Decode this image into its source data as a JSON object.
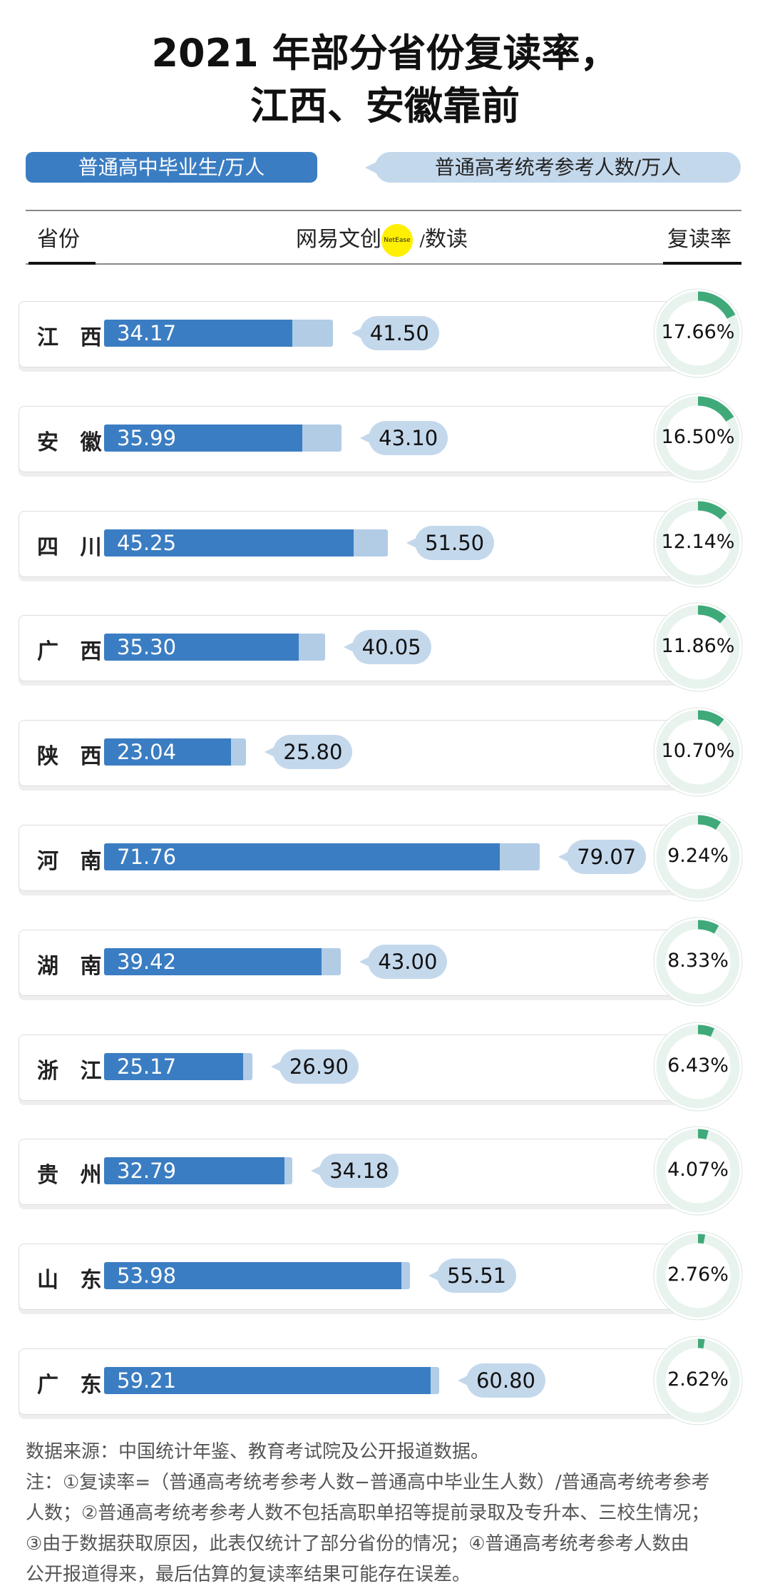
{
  "title": {
    "line1": "2021 年部分省份复读率，",
    "line2": "江西、安徽靠前"
  },
  "legend": {
    "graduates": "普通高中毕业生/万人",
    "examinees": "普通高考统考参考人数/万人"
  },
  "header": {
    "province": "省份",
    "logo": "网易文创",
    "logo_badge": "NetEase",
    "logo_sep": "/",
    "logo_sub": "数读",
    "rate": "复读率"
  },
  "colors": {
    "graduates": "#3b7dc2",
    "examinees": "#b2cce6",
    "rate_arc": "#3fa97a",
    "rate_track": "#e8f3ee"
  },
  "chart_data": {
    "type": "bar",
    "categories": [
      "江 西",
      "安 徽",
      "四 川",
      "广 西",
      "陕 西",
      "河 南",
      "湖 南",
      "浙 江",
      "贵 州",
      "山 东",
      "广 东"
    ],
    "series": [
      {
        "name": "普通高中毕业生/万人",
        "values": [
          34.17,
          35.99,
          45.25,
          35.3,
          23.04,
          71.76,
          39.42,
          25.17,
          32.79,
          53.98,
          59.21
        ],
        "labels": [
          "34.17",
          "35.99",
          "45.25",
          "35.30",
          "23.04",
          "71.76",
          "39.42",
          "25.17",
          "32.79",
          "53.98",
          "59.21"
        ]
      },
      {
        "name": "普通高考统考参考人数/万人",
        "values": [
          41.5,
          43.1,
          51.5,
          40.05,
          25.8,
          79.07,
          43.0,
          26.9,
          34.18,
          55.51,
          60.8
        ],
        "labels": [
          "41.50",
          "43.10",
          "51.50",
          "40.05",
          "25.80",
          "79.07",
          "43.00",
          "26.90",
          "34.18",
          "55.51",
          "60.80"
        ]
      },
      {
        "name": "复读率",
        "values": [
          17.66,
          16.5,
          12.14,
          11.86,
          10.7,
          9.24,
          8.33,
          6.43,
          4.07,
          2.76,
          2.62
        ],
        "labels": [
          "17.66%",
          "16.50%",
          "12.14%",
          "11.86%",
          "10.70%",
          "9.24%",
          "8.33%",
          "6.43%",
          "4.07%",
          "2.76%",
          "2.62%"
        ]
      }
    ]
  },
  "footer": {
    "source": "数据来源：中国统计年鉴、教育考试院及公开报道数据。",
    "notes": [
      "注：①复读率=（普通高考统考参考人数−普通高中毕业生人数）/普通高考统考参考",
      "人数；②普通高考统考参考人数不包括高职单招等提前录取及专升本、三校生情况；",
      "③由于数据获取原因，此表仅统计了部分省份的情况；④普通高考统考参考人数由",
      "公开报道得来，最后估算的复读率结果可能存在误差。"
    ]
  }
}
